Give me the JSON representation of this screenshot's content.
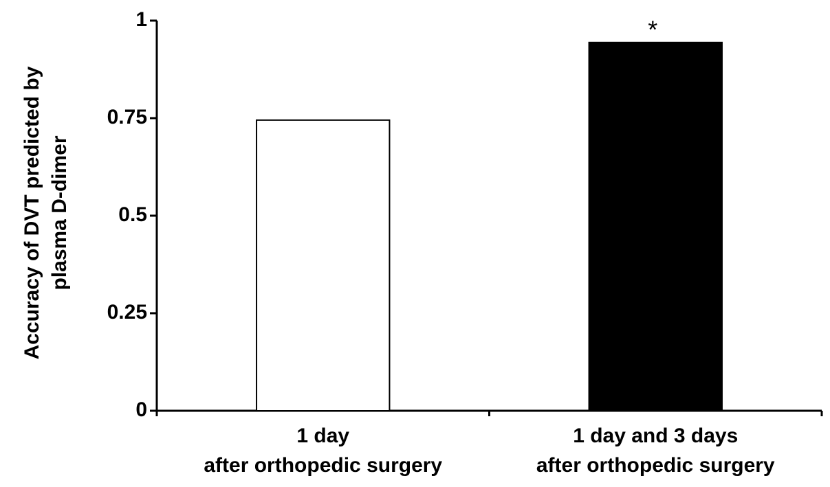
{
  "chart_data": {
    "type": "bar",
    "ylabel": [
      "Accuracy of DVT predicted by",
      "plasma D-dimer"
    ],
    "categories": [
      [
        "1 day",
        "after orthopedic surgery"
      ],
      [
        "1 day and 3 days",
        "after orthopedic surgery"
      ]
    ],
    "values": [
      0.745,
      0.944
    ],
    "colors": [
      "#ffffff",
      "#000000"
    ],
    "edgecolor": "#000000",
    "significance": [
      false,
      true
    ],
    "significance_marker": "*",
    "ylim": [
      0,
      1
    ],
    "yticks": [
      0,
      0.25,
      0.5,
      0.75,
      1
    ],
    "grid": false
  }
}
